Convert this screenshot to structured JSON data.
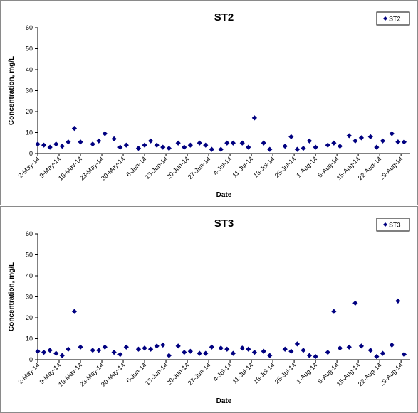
{
  "chart_data": [
    {
      "type": "scatter",
      "title": "ST2",
      "xlabel": "Date",
      "ylabel": "Concentration, mg/L",
      "ylim": [
        0,
        60
      ],
      "yticks": [
        0,
        10,
        20,
        30,
        40,
        50,
        60
      ],
      "xlim": [
        "2014-05-02",
        "2014-09-01"
      ],
      "xticks": [
        "2014-05-02",
        "2014-05-09",
        "2014-05-16",
        "2014-05-23",
        "2014-05-30",
        "2014-06-06",
        "2014-06-13",
        "2014-06-20",
        "2014-06-27",
        "2014-07-04",
        "2014-07-11",
        "2014-07-18",
        "2014-07-25",
        "2014-08-01",
        "2014-08-08",
        "2014-08-15",
        "2014-08-22",
        "2014-08-29"
      ],
      "xtick_labels": [
        "2-May-14",
        "9-May-14",
        "16-May-14",
        "23-May-14",
        "30-May-14",
        "6-Jun-14",
        "13-Jun-14",
        "20-Jun-14",
        "27-Jun-14",
        "4-Jul-14",
        "11-Jul-14",
        "18-Jul-14",
        "25-Jul-14",
        "1-Aug-14",
        "8-Aug-14",
        "15-Aug-14",
        "22-Aug-14",
        "29-Aug-14"
      ],
      "grid": false,
      "legend_position": "top-right",
      "marker_color": "#000080",
      "series": [
        {
          "name": "ST2",
          "x": [
            "2014-05-02",
            "2014-05-04",
            "2014-05-06",
            "2014-05-08",
            "2014-05-10",
            "2014-05-12",
            "2014-05-14",
            "2014-05-16",
            "2014-05-20",
            "2014-05-22",
            "2014-05-24",
            "2014-05-27",
            "2014-05-29",
            "2014-05-31",
            "2014-06-04",
            "2014-06-06",
            "2014-06-08",
            "2014-06-10",
            "2014-06-12",
            "2014-06-14",
            "2014-06-17",
            "2014-06-19",
            "2014-06-21",
            "2014-06-24",
            "2014-06-26",
            "2014-06-28",
            "2014-07-01",
            "2014-07-03",
            "2014-07-05",
            "2014-07-08",
            "2014-07-10",
            "2014-07-12",
            "2014-07-15",
            "2014-07-17",
            "2014-07-22",
            "2014-07-24",
            "2014-07-26",
            "2014-07-28",
            "2014-07-30",
            "2014-08-01",
            "2014-08-05",
            "2014-08-07",
            "2014-08-09",
            "2014-08-12",
            "2014-08-14",
            "2014-08-16",
            "2014-08-19",
            "2014-08-21",
            "2014-08-23",
            "2014-08-26",
            "2014-08-28",
            "2014-08-30"
          ],
          "y": [
            4.5,
            4,
            3,
            4.5,
            3.5,
            5.5,
            12,
            5.5,
            4.5,
            6,
            9.5,
            7,
            3,
            4,
            2.5,
            4,
            6,
            4,
            3,
            2.5,
            5,
            3,
            4,
            5,
            4,
            2,
            2,
            5,
            5,
            5,
            3,
            17,
            5,
            2,
            3.5,
            8,
            2,
            2.5,
            6,
            3,
            4,
            5,
            3.5,
            8.5,
            6,
            7.5,
            8,
            3,
            6,
            9.5,
            5.5,
            5.5
          ]
        }
      ]
    },
    {
      "type": "scatter",
      "title": "ST3",
      "xlabel": "Date",
      "ylabel": "Concentration, mg/L",
      "ylim": [
        0,
        60
      ],
      "yticks": [
        0,
        10,
        20,
        30,
        40,
        50,
        60
      ],
      "xlim": [
        "2014-05-02",
        "2014-09-01"
      ],
      "xticks": [
        "2014-05-02",
        "2014-05-09",
        "2014-05-16",
        "2014-05-23",
        "2014-05-30",
        "2014-06-06",
        "2014-06-13",
        "2014-06-20",
        "2014-06-27",
        "2014-07-04",
        "2014-07-11",
        "2014-07-18",
        "2014-07-25",
        "2014-08-01",
        "2014-08-08",
        "2014-08-15",
        "2014-08-22",
        "2014-08-29"
      ],
      "xtick_labels": [
        "2-May-14",
        "9-May-14",
        "16-May-14",
        "23-May-14",
        "30-May-14",
        "6-Jun-14",
        "13-Jun-14",
        "20-Jun-14",
        "27-Jun-14",
        "4-Jul-14",
        "11-Jul-14",
        "18-Jul-14",
        "25-Jul-14",
        "1-Aug-14",
        "8-Aug-14",
        "15-Aug-14",
        "22-Aug-14",
        "29-Aug-14"
      ],
      "grid": false,
      "legend_position": "top-right",
      "marker_color": "#000080",
      "series": [
        {
          "name": "ST3",
          "x": [
            "2014-05-02",
            "2014-05-04",
            "2014-05-06",
            "2014-05-08",
            "2014-05-10",
            "2014-05-12",
            "2014-05-14",
            "2014-05-16",
            "2014-05-20",
            "2014-05-22",
            "2014-05-24",
            "2014-05-27",
            "2014-05-29",
            "2014-05-31",
            "2014-06-04",
            "2014-06-06",
            "2014-06-08",
            "2014-06-10",
            "2014-06-12",
            "2014-06-14",
            "2014-06-17",
            "2014-06-19",
            "2014-06-21",
            "2014-06-24",
            "2014-06-26",
            "2014-06-28",
            "2014-07-01",
            "2014-07-03",
            "2014-07-05",
            "2014-07-08",
            "2014-07-10",
            "2014-07-12",
            "2014-07-15",
            "2014-07-17",
            "2014-07-22",
            "2014-07-24",
            "2014-07-26",
            "2014-07-28",
            "2014-07-30",
            "2014-08-01",
            "2014-08-05",
            "2014-08-07",
            "2014-08-09",
            "2014-08-12",
            "2014-08-14",
            "2014-08-16",
            "2014-08-19",
            "2014-08-21",
            "2014-08-23",
            "2014-08-26",
            "2014-08-28",
            "2014-08-30"
          ],
          "y": [
            4,
            3.5,
            4.5,
            3,
            2,
            5,
            23,
            6,
            4.5,
            4.5,
            6,
            3.5,
            2.5,
            6,
            5,
            5.5,
            5,
            6.5,
            7,
            2,
            6.5,
            3.5,
            4,
            3,
            3,
            6,
            5.5,
            5,
            3,
            5.5,
            5,
            3.5,
            4,
            2,
            5,
            4,
            7.5,
            4.5,
            2,
            1.5,
            3.5,
            23,
            5.5,
            6,
            27,
            6.5,
            4.5,
            1.5,
            3,
            7,
            28,
            2.5
          ]
        }
      ]
    }
  ]
}
